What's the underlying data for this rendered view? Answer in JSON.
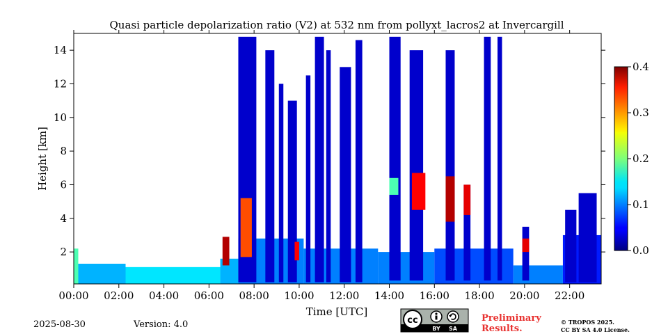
{
  "chart_data": {
    "type": "heatmap",
    "title": "Quasi particle depolarization ratio (V2) at 532 nm from pollyxt_lacros2 at Invercargill",
    "xlabel": "Time [UTC]",
    "ylabel": "Height [km]",
    "xlim_hours": [
      0,
      23.4
    ],
    "ylim_km": [
      0.1,
      15.0
    ],
    "x_ticks": [
      {
        "value": 0,
        "label": "00:00"
      },
      {
        "value": 2,
        "label": "02:00"
      },
      {
        "value": 4,
        "label": "04:00"
      },
      {
        "value": 6,
        "label": "06:00"
      },
      {
        "value": 8,
        "label": "08:00"
      },
      {
        "value": 10,
        "label": "10:00"
      },
      {
        "value": 12,
        "label": "12:00"
      },
      {
        "value": 14,
        "label": "14:00"
      },
      {
        "value": 16,
        "label": "16:00"
      },
      {
        "value": 18,
        "label": "18:00"
      },
      {
        "value": 20,
        "label": "20:00"
      },
      {
        "value": 22,
        "label": "22:00"
      }
    ],
    "y_ticks": [
      {
        "value": 2,
        "label": "2"
      },
      {
        "value": 4,
        "label": "4"
      },
      {
        "value": 6,
        "label": "6"
      },
      {
        "value": 8,
        "label": "8"
      },
      {
        "value": 10,
        "label": "10"
      },
      {
        "value": 12,
        "label": "12"
      },
      {
        "value": 14,
        "label": "14"
      }
    ],
    "colorbar": {
      "colormap": "jet",
      "range": [
        0.0,
        0.4
      ],
      "ticks": [
        {
          "value": 0.0,
          "label": "0.0"
        },
        {
          "value": 0.1,
          "label": "0.1"
        },
        {
          "value": 0.2,
          "label": "0.2"
        },
        {
          "value": 0.3,
          "label": "0.3"
        },
        {
          "value": 0.4,
          "label": "0.4"
        }
      ]
    },
    "boundary_layer": [
      {
        "t0": 0.0,
        "t1": 0.2,
        "top": 2.2,
        "value": 0.18
      },
      {
        "t0": 0.2,
        "t1": 2.3,
        "top": 1.3,
        "value": 0.12
      },
      {
        "t0": 2.3,
        "t1": 6.5,
        "top": 1.1,
        "value": 0.14
      },
      {
        "t0": 6.5,
        "t1": 7.3,
        "top": 1.6,
        "value": 0.12
      },
      {
        "t0": 7.3,
        "t1": 10.2,
        "top": 2.8,
        "value": 0.1
      },
      {
        "t0": 10.2,
        "t1": 13.5,
        "top": 2.2,
        "value": 0.1
      },
      {
        "t0": 13.5,
        "t1": 16.0,
        "top": 2.0,
        "value": 0.1
      },
      {
        "t0": 16.0,
        "t1": 19.5,
        "top": 2.2,
        "value": 0.08
      },
      {
        "t0": 19.5,
        "t1": 21.7,
        "top": 1.2,
        "value": 0.1
      },
      {
        "t0": 21.7,
        "t1": 23.4,
        "top": 3.0,
        "value": 0.06
      }
    ],
    "cloud_columns": [
      {
        "t0": 7.3,
        "t1": 8.1,
        "bottom": 0.2,
        "top": 14.8,
        "value": 0.03
      },
      {
        "t0": 8.5,
        "t1": 8.9,
        "bottom": 0.2,
        "top": 14.0,
        "value": 0.03
      },
      {
        "t0": 9.1,
        "t1": 9.3,
        "bottom": 0.2,
        "top": 12.0,
        "value": 0.03
      },
      {
        "t0": 9.5,
        "t1": 9.9,
        "bottom": 0.2,
        "top": 11.0,
        "value": 0.03
      },
      {
        "t0": 10.3,
        "t1": 10.5,
        "bottom": 0.2,
        "top": 12.5,
        "value": 0.03
      },
      {
        "t0": 10.7,
        "t1": 11.1,
        "bottom": 0.2,
        "top": 14.8,
        "value": 0.03
      },
      {
        "t0": 11.2,
        "t1": 11.4,
        "bottom": 0.2,
        "top": 14.0,
        "value": 0.03
      },
      {
        "t0": 11.8,
        "t1": 12.3,
        "bottom": 0.2,
        "top": 13.0,
        "value": 0.03
      },
      {
        "t0": 12.5,
        "t1": 12.8,
        "bottom": 0.2,
        "top": 14.6,
        "value": 0.03
      },
      {
        "t0": 14.0,
        "t1": 14.5,
        "bottom": 0.3,
        "top": 14.8,
        "value": 0.03
      },
      {
        "t0": 14.9,
        "t1": 15.5,
        "bottom": 0.3,
        "top": 14.0,
        "value": 0.03
      },
      {
        "t0": 16.5,
        "t1": 16.9,
        "bottom": 0.3,
        "top": 14.0,
        "value": 0.03
      },
      {
        "t0": 17.3,
        "t1": 17.6,
        "bottom": 0.3,
        "top": 6.0,
        "value": 0.03
      },
      {
        "t0": 18.2,
        "t1": 18.5,
        "bottom": 0.3,
        "top": 14.8,
        "value": 0.03
      },
      {
        "t0": 18.8,
        "t1": 19.0,
        "bottom": 0.3,
        "top": 14.8,
        "value": 0.03
      },
      {
        "t0": 19.9,
        "t1": 20.2,
        "bottom": 0.3,
        "top": 3.5,
        "value": 0.03
      },
      {
        "t0": 21.8,
        "t1": 22.3,
        "bottom": 0.2,
        "top": 4.5,
        "value": 0.03
      },
      {
        "t0": 22.4,
        "t1": 23.2,
        "bottom": 0.2,
        "top": 5.5,
        "value": 0.03
      }
    ],
    "high_depol_features": [
      {
        "t0": 7.4,
        "t1": 7.9,
        "bottom": 1.7,
        "top": 5.2,
        "value": 0.32
      },
      {
        "t0": 6.6,
        "t1": 6.9,
        "bottom": 1.2,
        "top": 2.9,
        "value": 0.38
      },
      {
        "t0": 15.0,
        "t1": 15.6,
        "bottom": 4.5,
        "top": 6.7,
        "value": 0.35
      },
      {
        "t0": 16.5,
        "t1": 16.9,
        "bottom": 3.8,
        "top": 6.5,
        "value": 0.38
      },
      {
        "t0": 17.3,
        "t1": 17.6,
        "bottom": 4.2,
        "top": 6.0,
        "value": 0.36
      },
      {
        "t0": 14.0,
        "t1": 14.4,
        "bottom": 5.4,
        "top": 6.4,
        "value": 0.18
      },
      {
        "t0": 9.8,
        "t1": 10.0,
        "bottom": 1.5,
        "top": 2.6,
        "value": 0.35
      },
      {
        "t0": 19.9,
        "t1": 20.2,
        "bottom": 2.0,
        "top": 2.8,
        "value": 0.36
      }
    ]
  },
  "footer": {
    "date": "2025-08-30",
    "version": "Version: 4.0",
    "preliminary_line1": "Preliminary",
    "preliminary_line2": "Results.",
    "copyright_line1": "© TROPOS 2025.",
    "copyright_line2": "CC BY SA 4.0 License.",
    "cc_badge": {
      "by": "BY",
      "sa": "SA",
      "prelim_color": "#e8312f"
    }
  }
}
